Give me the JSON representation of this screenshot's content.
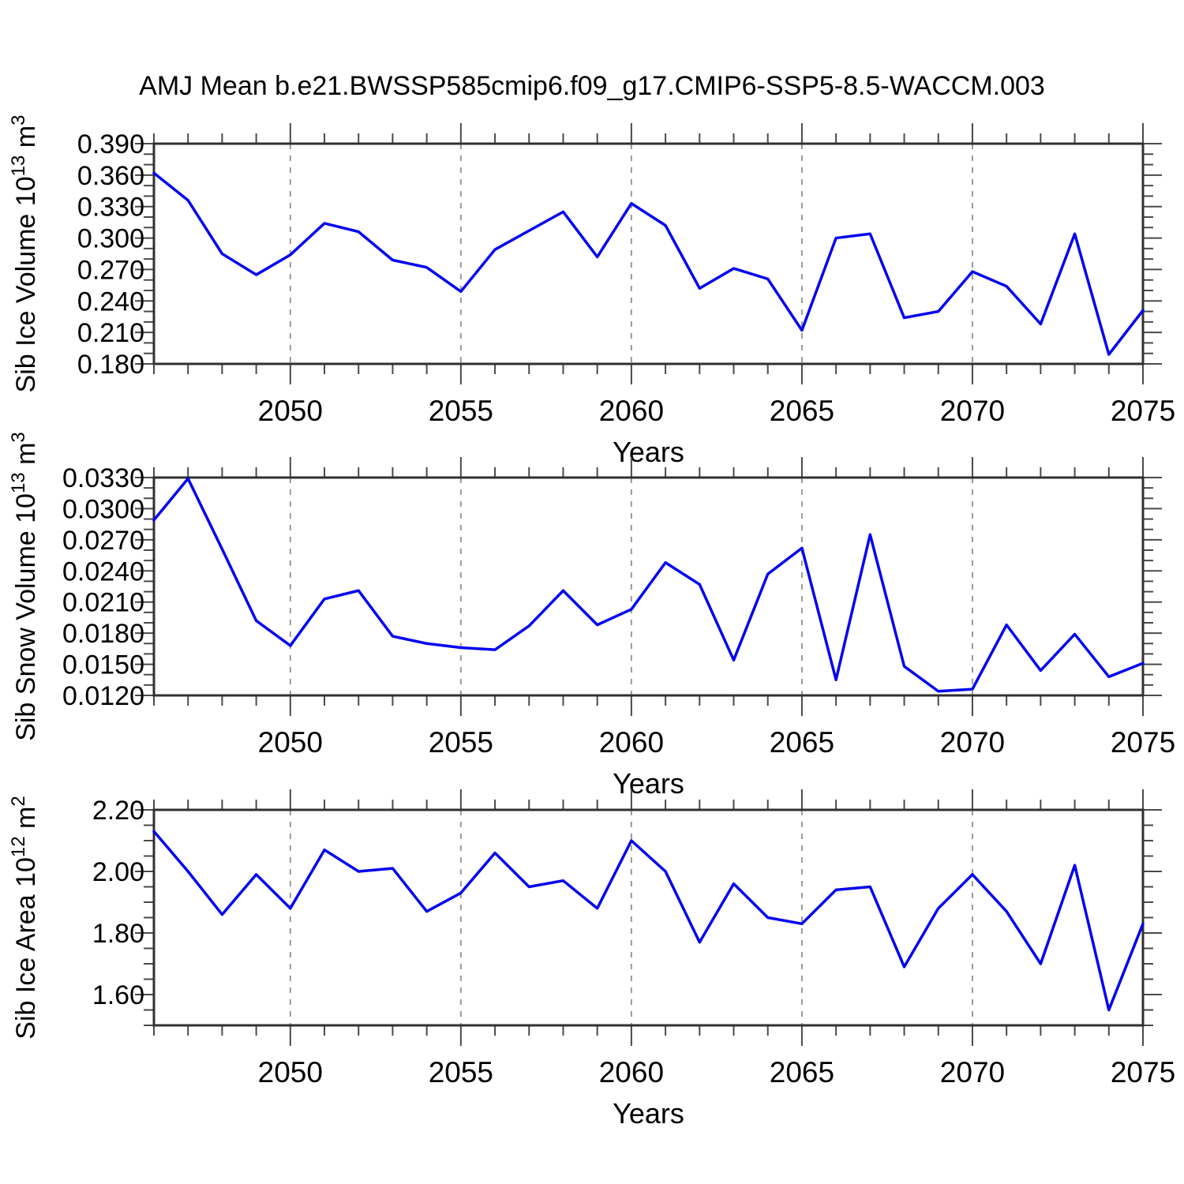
{
  "title": "AMJ Mean b.e21.BWSSP585cmip6.f09_g17.CMIP6-SSP5-8.5-WACCM.003",
  "line_color": "#0202f2",
  "grid_color": "#9a9a9a",
  "axis_color": "#303030",
  "chart_data": {
    "type": "line",
    "title": "AMJ Mean b.e21.BWSSP585cmip6.f09_g17.CMIP6-SSP5-8.5-WACCM.003",
    "x_label": "Years",
    "legend": "none",
    "grid": "vertical-dashed",
    "years": [
      2046,
      2047,
      2048,
      2049,
      2050,
      2051,
      2052,
      2053,
      2054,
      2055,
      2056,
      2057,
      2058,
      2059,
      2060,
      2061,
      2062,
      2063,
      2064,
      2065,
      2066,
      2067,
      2068,
      2069,
      2070,
      2071,
      2072,
      2073,
      2074,
      2075
    ],
    "xlim": [
      2046,
      2075
    ],
    "x_minor_step": 1,
    "xticks": [
      {
        "label": "2050",
        "value": 2050
      },
      {
        "label": "2055",
        "value": 2055
      },
      {
        "label": "2060",
        "value": 2060
      },
      {
        "label": "2065",
        "value": 2065
      },
      {
        "label": "2070",
        "value": 2070
      },
      {
        "label": "2075",
        "value": 2075
      }
    ],
    "gridlines": [
      2050,
      2055,
      2060,
      2065,
      2070
    ],
    "panels": [
      {
        "name": "sib-ice-volume",
        "ylabel_plain": "Sib Ice Volume 10^13 m^3",
        "ylabel_segments": [
          {
            "t": "Sib Ice Volume 10"
          },
          {
            "t": "13",
            "sup": true
          },
          {
            "t": " m"
          },
          {
            "t": "3",
            "sup": true
          }
        ],
        "ylim": [
          0.18,
          0.39
        ],
        "y_minor_step": 0.01,
        "yticks": [
          {
            "label": "0.390",
            "value": 0.39
          },
          {
            "label": "0.360",
            "value": 0.36
          },
          {
            "label": "0.330",
            "value": 0.33
          },
          {
            "label": "0.300",
            "value": 0.3
          },
          {
            "label": "0.270",
            "value": 0.27
          },
          {
            "label": "0.240",
            "value": 0.24
          },
          {
            "label": "0.210",
            "value": 0.21
          },
          {
            "label": "0.180",
            "value": 0.18
          }
        ],
        "values": [
          0.362,
          0.336,
          0.285,
          0.265,
          0.284,
          0.314,
          0.306,
          0.279,
          0.272,
          0.249,
          0.289,
          0.307,
          0.325,
          0.282,
          0.333,
          0.312,
          0.252,
          0.271,
          0.261,
          0.212,
          0.3,
          0.304,
          0.224,
          0.23,
          0.268,
          0.254,
          0.218,
          0.304,
          0.189,
          0.231
        ]
      },
      {
        "name": "sib-snow-volume",
        "ylabel_plain": "Sib Snow Volume 10^13 m^3",
        "ylabel_segments": [
          {
            "t": "Sib Snow Volume 10"
          },
          {
            "t": "13",
            "sup": true
          },
          {
            "t": " m"
          },
          {
            "t": "3",
            "sup": true
          }
        ],
        "ylim": [
          0.012,
          0.033
        ],
        "y_minor_step": 0.001,
        "yticks": [
          {
            "label": "0.0330",
            "value": 0.033
          },
          {
            "label": "0.0300",
            "value": 0.03
          },
          {
            "label": "0.0270",
            "value": 0.027
          },
          {
            "label": "0.0240",
            "value": 0.024
          },
          {
            "label": "0.0210",
            "value": 0.021
          },
          {
            "label": "0.0180",
            "value": 0.018
          },
          {
            "label": "0.0150",
            "value": 0.015
          },
          {
            "label": "0.0120",
            "value": 0.012
          }
        ],
        "values": [
          0.0289,
          0.0329,
          0.0261,
          0.0192,
          0.0168,
          0.0213,
          0.0221,
          0.0177,
          0.017,
          0.0166,
          0.0164,
          0.0187,
          0.0221,
          0.0188,
          0.0203,
          0.0248,
          0.0227,
          0.0154,
          0.0237,
          0.0262,
          0.0135,
          0.0275,
          0.0148,
          0.0124,
          0.0126,
          0.0188,
          0.0144,
          0.0179,
          0.0138,
          0.0151
        ]
      },
      {
        "name": "sib-ice-area",
        "ylabel_plain": "Sib Ice Area 10^12 m^2",
        "ylabel_segments": [
          {
            "t": "Sib Ice Area 10"
          },
          {
            "t": "12",
            "sup": true
          },
          {
            "t": " m"
          },
          {
            "t": "2",
            "sup": true
          }
        ],
        "ylim": [
          1.5,
          2.2
        ],
        "y_minor_step": 0.05,
        "yticks": [
          {
            "label": "2.20",
            "value": 2.2
          },
          {
            "label": "2.00",
            "value": 2.0
          },
          {
            "label": "1.80",
            "value": 1.8
          },
          {
            "label": "1.60",
            "value": 1.6
          }
        ],
        "values": [
          2.13,
          2.0,
          1.86,
          1.99,
          1.88,
          2.07,
          2.0,
          2.01,
          1.87,
          1.93,
          2.06,
          1.95,
          1.97,
          1.88,
          2.1,
          2.0,
          1.77,
          1.96,
          1.85,
          1.83,
          1.94,
          1.95,
          1.69,
          1.88,
          1.99,
          1.87,
          1.7,
          2.02,
          1.55,
          1.83
        ]
      }
    ]
  }
}
